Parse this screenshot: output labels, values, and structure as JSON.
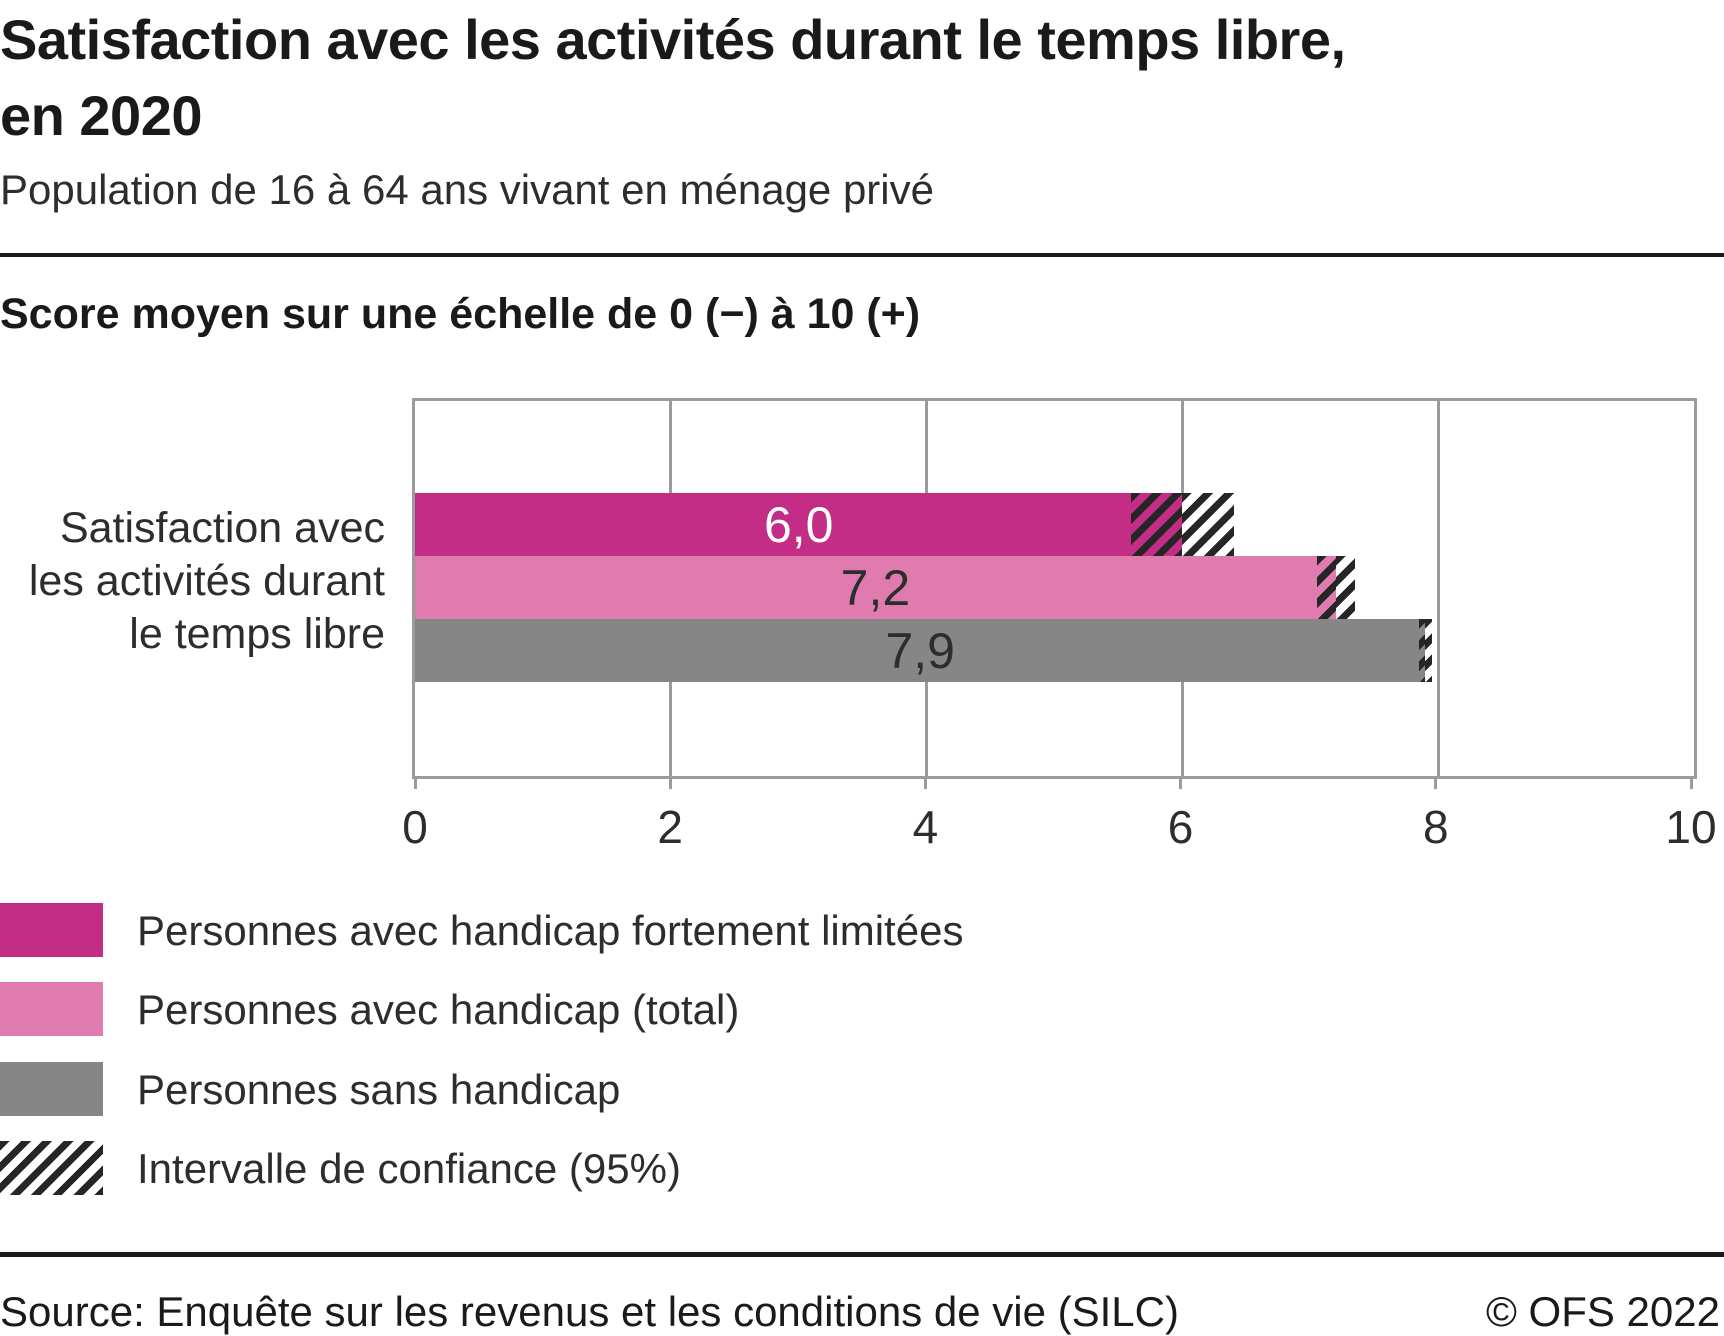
{
  "header": {
    "title": "Satisfaction avec les activités durant le temps libre, en 2020",
    "title_lines": [
      "Satisfaction avec les activités durant le temps libre,",
      "en 2020"
    ],
    "subtitle": "Population de 16 à 64 ans vivant en ménage privé"
  },
  "chart_data": {
    "type": "bar",
    "orientation": "horizontal",
    "title": "Score moyen sur une échelle de 0 (−) à 10 (+)",
    "category": "Satisfaction avec les activités durant le temps libre",
    "category_lines": [
      "Satisfaction avec",
      "les activités durant",
      "le temps libre"
    ],
    "xlabel": "",
    "ylabel": "",
    "xlim": [
      0,
      10
    ],
    "x_ticks": [
      0,
      2,
      4,
      6,
      8,
      10
    ],
    "grid": "vertical",
    "legend_position": "bottom-left",
    "series": [
      {
        "name": "Personnes avec handicap fortement limitées",
        "value": 6.0,
        "label": "6,0",
        "ci_low": 5.6,
        "ci_high": 6.4,
        "color": "#c32d86",
        "label_color": "#ffffff"
      },
      {
        "name": "Personnes avec handicap (total)",
        "value": 7.2,
        "label": "7,2",
        "ci_low": 7.05,
        "ci_high": 7.35,
        "color": "#e07baf",
        "label_color": "#2d2d2d"
      },
      {
        "name": "Personnes sans handicap",
        "value": 7.9,
        "label": "7,9",
        "ci_low": 7.85,
        "ci_high": 7.95,
        "color": "#868686",
        "label_color": "#2d2d2d"
      }
    ],
    "confidence_interval_label": "Intervalle de confiance (95%)"
  },
  "legend": {
    "items": [
      {
        "label": "Personnes avec handicap fortement limitées",
        "swatch": "color",
        "color": "#c32d86"
      },
      {
        "label": "Personnes avec handicap (total)",
        "swatch": "color",
        "color": "#e07baf"
      },
      {
        "label": "Personnes sans handicap",
        "swatch": "color",
        "color": "#868686"
      },
      {
        "label": "Intervalle de confiance (95%)",
        "swatch": "hatch",
        "color": "#262626"
      }
    ]
  },
  "footer": {
    "source": "Source: Enquête sur les revenus et les conditions de vie (SILC)",
    "copyright": "© OFS 2022"
  },
  "colors": {
    "magenta": "#c32d86",
    "pink": "#e07baf",
    "gray_bar": "#868686",
    "axis_gray": "#9b9b9b",
    "hatch_black": "#262626",
    "text_dark": "#1a1a1a",
    "text_body": "#2d2d2d"
  }
}
